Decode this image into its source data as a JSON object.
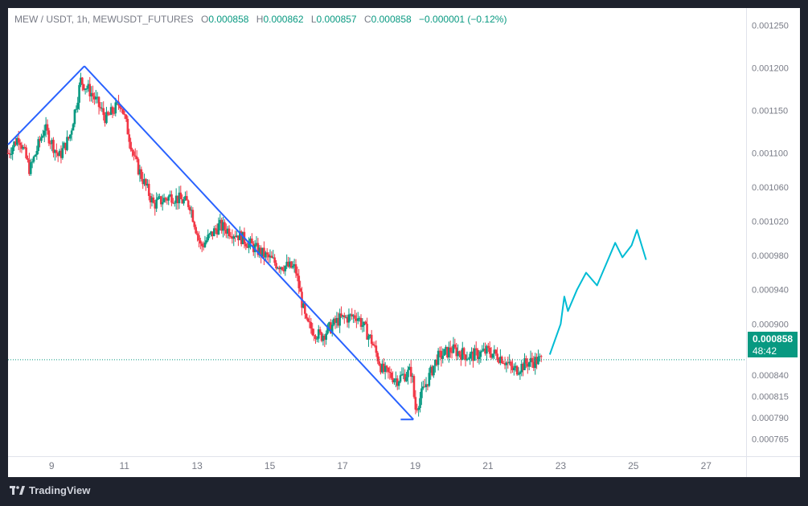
{
  "legend": {
    "symbol": "MEW / USDT, 1h, MEWUSDT_FUTURES",
    "o_label": "O",
    "o_value": "0.000858",
    "h_label": "H",
    "h_value": "0.000862",
    "l_label": "L",
    "l_value": "0.000857",
    "c_label": "C",
    "c_value": "0.000858",
    "change": "−0.000001 (−0.12%)"
  },
  "last_price": {
    "value": "0.000858",
    "countdown": "48:42"
  },
  "brand": "TradingView",
  "colors": {
    "up": "#089981",
    "down": "#f23645",
    "trendline": "#2962ff",
    "projection": "#00bcd4",
    "badge": "#089981",
    "background": "#ffffff",
    "frame": "#1e222d"
  },
  "chart_data": {
    "type": "candlestick",
    "symbol": "MEWUSDT_FUTURES",
    "interval": "1h",
    "x_ticks": [
      "9",
      "11",
      "13",
      "15",
      "17",
      "19",
      "21",
      "23",
      "25",
      "27"
    ],
    "y_ticks": [
      "0.001250",
      "0.001200",
      "0.001150",
      "0.001100",
      "0.001060",
      "0.001020",
      "0.000980",
      "0.000940",
      "0.000900",
      "0.000870",
      "0.000840",
      "0.000815",
      "0.000790",
      "0.000765"
    ],
    "ylim": [
      0.000745,
      0.00127
    ],
    "last_price": 0.000858,
    "price_path": [
      {
        "x": 7.8,
        "y": 0.0011
      },
      {
        "x": 8.1,
        "y": 0.00112
      },
      {
        "x": 8.4,
        "y": 0.00108
      },
      {
        "x": 8.8,
        "y": 0.00113
      },
      {
        "x": 9.2,
        "y": 0.001095
      },
      {
        "x": 9.5,
        "y": 0.00112
      },
      {
        "x": 9.8,
        "y": 0.001185
      },
      {
        "x": 10.1,
        "y": 0.00117
      },
      {
        "x": 10.5,
        "y": 0.00114
      },
      {
        "x": 10.9,
        "y": 0.00116
      },
      {
        "x": 11.3,
        "y": 0.00109
      },
      {
        "x": 11.8,
        "y": 0.00104
      },
      {
        "x": 12.3,
        "y": 0.00105
      },
      {
        "x": 12.8,
        "y": 0.00104
      },
      {
        "x": 13.1,
        "y": 0.00099
      },
      {
        "x": 13.6,
        "y": 0.001015
      },
      {
        "x": 14.1,
        "y": 0.001005
      },
      {
        "x": 14.7,
        "y": 0.000985
      },
      {
        "x": 15.2,
        "y": 0.00097
      },
      {
        "x": 15.7,
        "y": 0.000965
      },
      {
        "x": 16.0,
        "y": 0.0009
      },
      {
        "x": 16.4,
        "y": 0.000885
      },
      {
        "x": 16.9,
        "y": 0.000905
      },
      {
        "x": 17.4,
        "y": 0.00091
      },
      {
        "x": 17.8,
        "y": 0.00088
      },
      {
        "x": 18.1,
        "y": 0.000845
      },
      {
        "x": 18.5,
        "y": 0.000835
      },
      {
        "x": 18.9,
        "y": 0.000845
      },
      {
        "x": 19.0,
        "y": 0.0008
      },
      {
        "x": 19.3,
        "y": 0.00083
      },
      {
        "x": 19.6,
        "y": 0.00086
      },
      {
        "x": 20.0,
        "y": 0.00087
      },
      {
        "x": 20.5,
        "y": 0.000862
      },
      {
        "x": 21.0,
        "y": 0.000868
      },
      {
        "x": 21.4,
        "y": 0.00086
      },
      {
        "x": 21.7,
        "y": 0.000845
      },
      {
        "x": 22.1,
        "y": 0.000855
      },
      {
        "x": 22.5,
        "y": 0.000858
      }
    ],
    "trendlines": [
      {
        "from": {
          "x": 7.8,
          "y": 0.00111
        },
        "to": {
          "x": 9.9,
          "y": 0.001202
        }
      },
      {
        "from": {
          "x": 9.9,
          "y": 0.001202
        },
        "to": {
          "x": 18.95,
          "y": 0.000788
        }
      },
      {
        "from": {
          "x": 18.6,
          "y": 0.000788
        },
        "to": {
          "x": 18.95,
          "y": 0.000788
        }
      }
    ],
    "projection": [
      {
        "x": 22.7,
        "y": 0.000864
      },
      {
        "x": 23.0,
        "y": 0.0009
      },
      {
        "x": 23.1,
        "y": 0.000932
      },
      {
        "x": 23.2,
        "y": 0.000915
      },
      {
        "x": 23.45,
        "y": 0.00094
      },
      {
        "x": 23.7,
        "y": 0.00096
      },
      {
        "x": 24.0,
        "y": 0.000945
      },
      {
        "x": 24.3,
        "y": 0.000975
      },
      {
        "x": 24.5,
        "y": 0.000995
      },
      {
        "x": 24.7,
        "y": 0.000978
      },
      {
        "x": 24.95,
        "y": 0.000992
      },
      {
        "x": 25.1,
        "y": 0.00101
      },
      {
        "x": 25.35,
        "y": 0.000975
      }
    ],
    "grid": false
  }
}
